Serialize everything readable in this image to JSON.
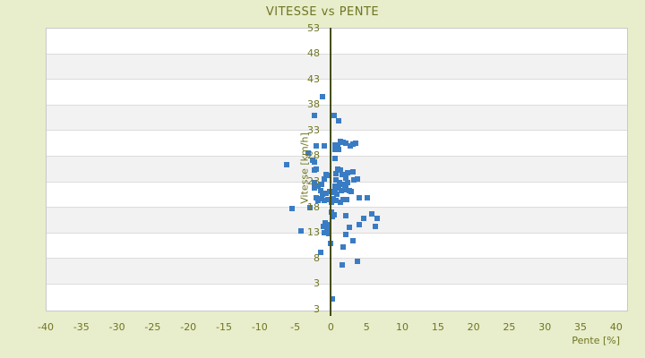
{
  "page": {
    "title": "VITESSE vs PENTE"
  },
  "chart_data": {
    "type": "scatter",
    "title": "VITESSE vs PENTE",
    "xlabel": "Pente [%]",
    "ylabel": "Vitesse [km/h]",
    "xlim": [
      -40,
      41.4
    ],
    "ylim": [
      -2.1,
      53
    ],
    "x_ticks": [
      -40,
      -35,
      -30,
      -25,
      -20,
      -15,
      -10,
      -5,
      0,
      5,
      10,
      15,
      20,
      25,
      30,
      35,
      40
    ],
    "y_ticks": [
      53,
      48,
      43,
      38,
      33,
      28,
      23,
      18,
      13,
      8,
      3
    ],
    "y_min_edge_label": "3",
    "legend": "none",
    "grid": "horizontal-bands",
    "marker": "plus",
    "colors": {
      "background": "#e8edcb",
      "text": "#6f7522",
      "axis_line": "#454e07",
      "band_main": "#ffffff",
      "band_alt": "#f2f2f2",
      "gridline": "#dcdcdc",
      "plot_border": "#c9c9c9",
      "marker": "#3a7cc4"
    },
    "points": [
      [
        -1.3,
        39.7
      ],
      [
        -2.4,
        36.0
      ],
      [
        0.3,
        36.0
      ],
      [
        0.9,
        35.0
      ],
      [
        1.2,
        31.0
      ],
      [
        1.6,
        30.7
      ],
      [
        1.9,
        30.6
      ],
      [
        -2.2,
        30.0
      ],
      [
        -1.0,
        30.1
      ],
      [
        0.4,
        30.3
      ],
      [
        0.8,
        30.1
      ],
      [
        2.6,
        30.1
      ],
      [
        2.9,
        30.4
      ],
      [
        3.4,
        30.6
      ],
      [
        0.4,
        29.3
      ],
      [
        0.9,
        29.3
      ],
      [
        -3.3,
        28.6
      ],
      [
        0.5,
        27.6
      ],
      [
        -2.7,
        27.2
      ],
      [
        -2.4,
        26.9
      ],
      [
        -6.3,
        26.4
      ],
      [
        -2.5,
        25.3
      ],
      [
        -2.2,
        25.6
      ],
      [
        0.8,
        25.6
      ],
      [
        1.2,
        25.3
      ],
      [
        0.6,
        24.7
      ],
      [
        1.5,
        24.5
      ],
      [
        2.2,
        24.9
      ],
      [
        2.9,
        25.1
      ],
      [
        -0.8,
        24.5
      ],
      [
        -0.5,
        24.3
      ],
      [
        -2.4,
        23.0
      ],
      [
        -1.1,
        23.7
      ],
      [
        0.6,
        23.5
      ],
      [
        1.1,
        23.0
      ],
      [
        1.9,
        23.8
      ],
      [
        2.2,
        23.0
      ],
      [
        3.1,
        23.4
      ],
      [
        3.6,
        23.7
      ],
      [
        -1.9,
        22.3
      ],
      [
        -1.4,
        22.6
      ],
      [
        0.5,
        22.3
      ],
      [
        0.9,
        21.9
      ],
      [
        1.4,
        22.6
      ],
      [
        1.9,
        22.0
      ],
      [
        -2.5,
        21.8
      ],
      [
        -1.6,
        21.3
      ],
      [
        -1.3,
        20.7
      ],
      [
        -0.8,
        20.9
      ],
      [
        -0.3,
        21.2
      ],
      [
        0.1,
        21.0
      ],
      [
        0.4,
        21.3
      ],
      [
        0.7,
        20.7
      ],
      [
        1.3,
        21.4
      ],
      [
        1.8,
        21.6
      ],
      [
        2.4,
        21.4
      ],
      [
        2.7,
        21.2
      ],
      [
        -2.2,
        19.9
      ],
      [
        -1.9,
        19.4
      ],
      [
        -1.4,
        19.7
      ],
      [
        -1.0,
        19.4
      ],
      [
        -0.5,
        19.6
      ],
      [
        0.0,
        19.1
      ],
      [
        0.2,
        19.7
      ],
      [
        0.6,
        19.4
      ],
      [
        1.2,
        19.1
      ],
      [
        1.6,
        19.6
      ],
      [
        2.1,
        19.6
      ],
      [
        3.8,
        19.9
      ],
      [
        5.0,
        19.9
      ],
      [
        -5.6,
        17.9
      ],
      [
        -3.1,
        18.1
      ],
      [
        0.0,
        17.1
      ],
      [
        0.3,
        16.6
      ],
      [
        0.1,
        16.2
      ],
      [
        1.9,
        16.4
      ],
      [
        5.6,
        16.8
      ],
      [
        6.3,
        15.9
      ],
      [
        4.5,
        16.0
      ],
      [
        -0.9,
        15.0
      ],
      [
        -0.6,
        14.7
      ],
      [
        -1.2,
        14.3
      ],
      [
        2.5,
        14.1
      ],
      [
        3.8,
        14.7
      ],
      [
        6.1,
        14.3
      ],
      [
        -4.3,
        13.4
      ],
      [
        -1.0,
        13.2
      ],
      [
        -0.7,
        13.6
      ],
      [
        -0.4,
        12.9
      ],
      [
        1.9,
        12.7
      ],
      [
        2.9,
        11.6
      ],
      [
        -0.2,
        11.1
      ],
      [
        1.6,
        10.3
      ],
      [
        -1.5,
        9.2
      ],
      [
        3.6,
        7.5
      ],
      [
        1.4,
        6.9
      ],
      [
        0.1,
        0.2
      ]
    ]
  }
}
